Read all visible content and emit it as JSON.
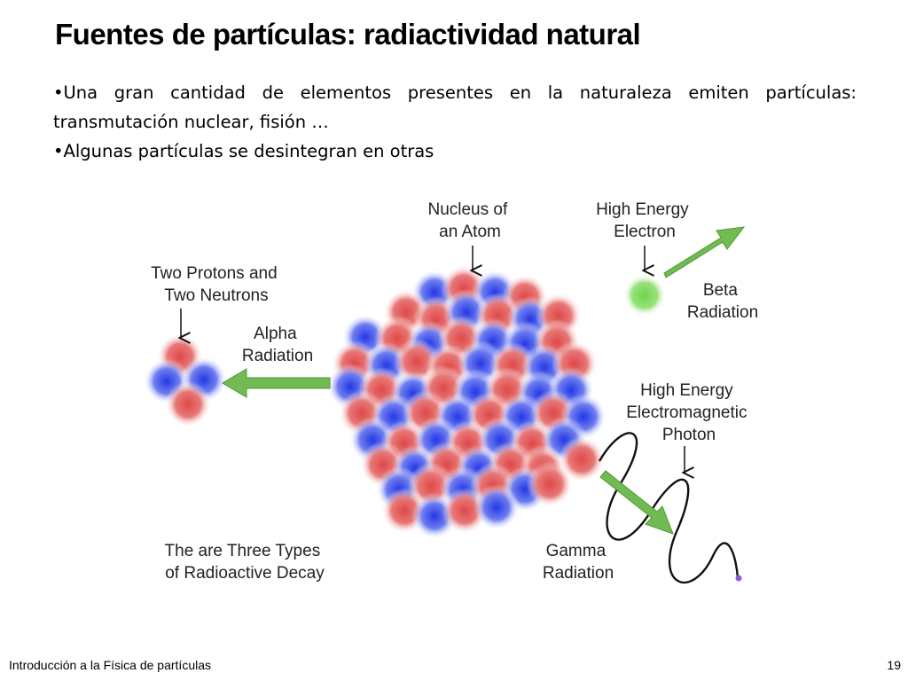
{
  "slide": {
    "title": "Fuentes de partículas: radiactividad natural",
    "bullets": [
      "•Una gran cantidad de elementos presentes en la naturaleza emiten partículas: transmutación nuclear, fisión …",
      "•Algunas partículas se desintegran en otras"
    ]
  },
  "diagram": {
    "nucleus_label": [
      "Nucleus of",
      "an Atom"
    ],
    "electron_label": [
      "High Energy",
      "Electron"
    ],
    "beta_label": [
      "Beta",
      "Radiation"
    ],
    "alpha_particle_label": [
      "Two Protons and",
      "Two Neutrons"
    ],
    "alpha_label": [
      "Alpha",
      "Radiation"
    ],
    "photon_label": [
      "High Energy",
      "Electromagnetic",
      "Photon"
    ],
    "gamma_label": [
      "Gamma",
      "Radiation"
    ],
    "caption": [
      "The are Three Types",
      "of Radioactive Decay"
    ],
    "colors": {
      "proton": "#e05a5a",
      "neutron": "#3a4fe0",
      "electron": "#7ddc55",
      "arrow": "#72bb52"
    }
  },
  "footer": {
    "course": "Introducción a la Física de partículas",
    "page": "19"
  }
}
